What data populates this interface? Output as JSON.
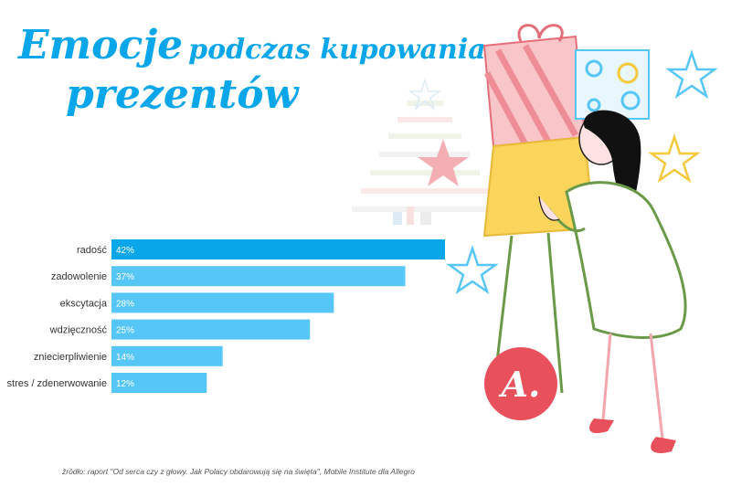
{
  "title": {
    "word1": "Emocje",
    "word2": "podczas kupowania",
    "word3": "prezentów"
  },
  "colors": {
    "accent": "#0aa6ea",
    "bar_dark": "#0aa6ea",
    "bar_light": "#56c6f7",
    "logo": "#e8505b"
  },
  "logo_text": "A.",
  "source": "źródło: raport \"Od serca czy z głowy. Jak Polacy obdarowują się na święta\", Mobile Institute dla Allegro",
  "chart_data": {
    "type": "bar",
    "orientation": "horizontal",
    "categories": [
      "radość",
      "zadowolenie",
      "ekscytacja",
      "wdzięczność",
      "zniecierpliwienie",
      "stres / zdenerwowanie"
    ],
    "values": [
      42,
      37,
      28,
      25,
      14,
      12
    ],
    "value_labels": [
      "42%",
      "37%",
      "28%",
      "25%",
      "14%",
      "12%"
    ],
    "unit": "%",
    "xlim": [
      0,
      42
    ],
    "grid": false,
    "legend": "none"
  }
}
